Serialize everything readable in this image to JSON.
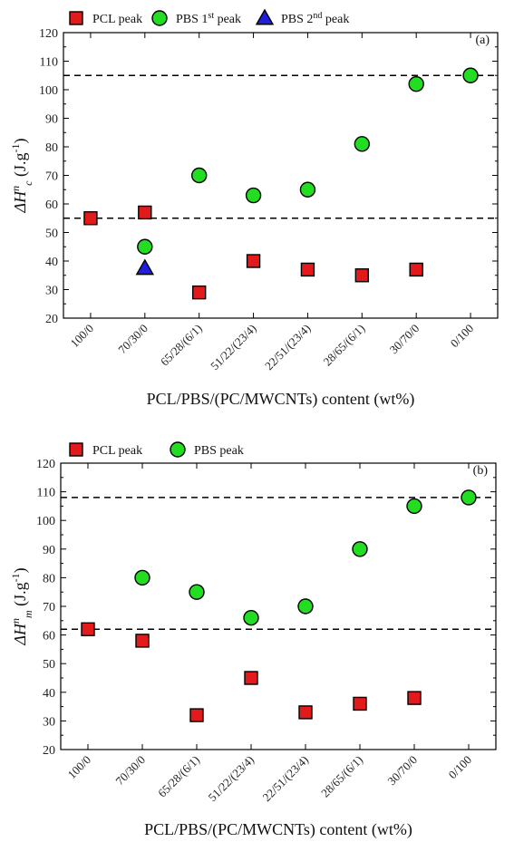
{
  "colors": {
    "pcl": "#e31a1c",
    "pbs1": "#22dd22",
    "pbs2": "#1f1fe0",
    "ref_line": "#000000"
  },
  "chart_data": [
    {
      "type": "scatter",
      "panel_label": "(a)",
      "categories": [
        "100/0",
        "70/30/0",
        "65/28/(6/1)",
        "51/22/(23/4)",
        "22/51/(23/4)",
        "28/65/(6/1)",
        "30/70/0",
        "0/100"
      ],
      "xlabel": "PCL/PBS/(PC/MWCNTs) content (wt%)",
      "ylabel": {
        "main": "ΔH",
        "sup": "n",
        "sub": "c",
        "unit": " (J.g",
        "unit_sup": "-1",
        "close": ")"
      },
      "ylim": [
        20,
        120
      ],
      "yticks": [
        20,
        30,
        40,
        50,
        60,
        70,
        80,
        90,
        100,
        110,
        120
      ],
      "grid": false,
      "legend": [
        {
          "key": "pcl",
          "label": "PCL peak",
          "marker": "square"
        },
        {
          "key": "pbs1",
          "label": "PBS 1",
          "sup": "st",
          "suffix": " peak",
          "marker": "circle"
        },
        {
          "key": "pbs2",
          "label": "PBS 2",
          "sup": "nd",
          "suffix": " peak",
          "marker": "triangle"
        }
      ],
      "series": [
        {
          "key": "pcl",
          "marker": "square",
          "values": [
            55,
            57,
            29,
            40,
            37,
            35,
            37,
            null
          ]
        },
        {
          "key": "pbs1",
          "marker": "circle",
          "values": [
            null,
            45,
            70,
            63,
            65,
            81,
            102,
            105
          ]
        },
        {
          "key": "pbs2",
          "marker": "triangle",
          "values": [
            null,
            37.5,
            null,
            null,
            null,
            null,
            null,
            null
          ]
        }
      ],
      "hlines": [
        105,
        55
      ]
    },
    {
      "type": "scatter",
      "panel_label": "(b)",
      "categories": [
        "100/0",
        "70/30/0",
        "65/28/(6/1)",
        "51/22/(23/4)",
        "22/51/(23/4)",
        "28/65/(6/1)",
        "30/70/0",
        "0/100"
      ],
      "xlabel": "PCL/PBS/(PC/MWCNTs) content (wt%)",
      "ylabel": {
        "main": "ΔH",
        "sup": "n",
        "sub": "m",
        "unit": " (J.g",
        "unit_sup": "-1",
        "close": ")"
      },
      "ylim": [
        20,
        120
      ],
      "yticks": [
        20,
        30,
        40,
        50,
        60,
        70,
        80,
        90,
        100,
        110,
        120
      ],
      "grid": false,
      "legend": [
        {
          "key": "pcl",
          "label": "PCL peak",
          "marker": "square"
        },
        {
          "key": "pbs1",
          "label": "PBS peak",
          "marker": "circle"
        }
      ],
      "series": [
        {
          "key": "pcl",
          "marker": "square",
          "values": [
            62,
            58,
            32,
            45,
            33,
            36,
            38,
            null
          ]
        },
        {
          "key": "pbs1",
          "marker": "circle",
          "values": [
            null,
            80,
            75,
            66,
            70,
            90,
            105,
            108
          ]
        }
      ],
      "hlines": [
        108,
        62
      ]
    }
  ]
}
